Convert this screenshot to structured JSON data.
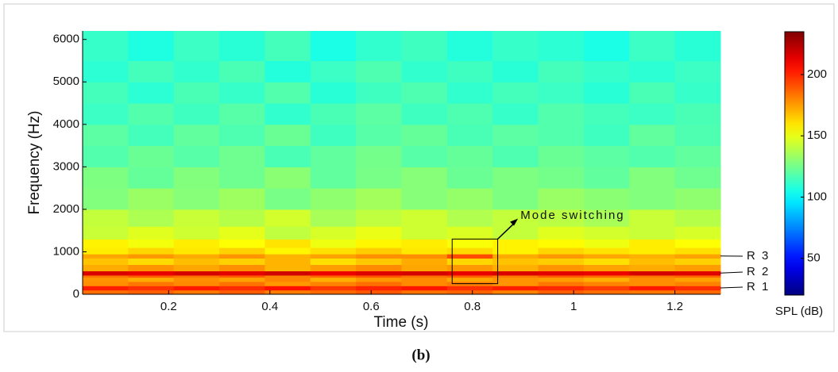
{
  "chart_data": {
    "type": "heatmap",
    "x_label": "Time (s)",
    "y_label": "Frequency (Hz)",
    "colorbar_label": "SPL (dB)",
    "caption": "(b)",
    "annotations": [
      "Mode switching",
      "R 1",
      "R 2",
      "R 3"
    ],
    "x": [
      0.03,
      0.12,
      0.21,
      0.3,
      0.39,
      0.48,
      0.57,
      0.66,
      0.75,
      0.84,
      0.93,
      1.02,
      1.11,
      1.2,
      1.29
    ],
    "y": [
      0,
      100,
      200,
      300,
      400,
      450,
      550,
      700,
      850,
      950,
      1100,
      1300,
      1600,
      2000,
      2500,
      3000,
      3500,
      4000,
      4500,
      5000,
      5500,
      6200
    ],
    "z": [
      [
        185,
        188,
        183,
        189,
        182,
        186,
        190,
        184,
        187,
        181,
        188,
        185,
        183,
        186
      ],
      [
        202,
        198,
        203,
        199,
        205,
        197,
        201,
        204,
        198,
        202,
        200,
        196,
        203,
        199
      ],
      [
        178,
        183,
        179,
        184,
        176,
        181,
        185,
        179,
        182,
        177,
        183,
        180,
        178,
        181
      ],
      [
        177,
        172,
        178,
        174,
        180,
        171,
        176,
        179,
        173,
        177,
        175,
        171,
        178,
        174
      ],
      [
        183,
        188,
        184,
        189,
        181,
        186,
        190,
        184,
        187,
        182,
        188,
        185,
        183,
        186
      ],
      [
        216,
        213,
        217,
        214,
        218,
        212,
        215,
        217,
        213,
        216,
        214,
        212,
        217,
        215
      ],
      [
        172,
        177,
        173,
        178,
        170,
        175,
        179,
        173,
        176,
        171,
        177,
        174,
        172,
        175
      ],
      [
        167,
        162,
        168,
        164,
        170,
        161,
        166,
        172,
        163,
        167,
        165,
        161,
        168,
        164
      ],
      [
        173,
        176,
        172,
        177,
        170,
        174,
        178,
        178,
        192,
        172,
        176,
        173,
        171,
        174
      ],
      [
        158,
        163,
        159,
        164,
        156,
        161,
        165,
        159,
        162,
        157,
        163,
        160,
        158,
        161
      ],
      [
        157,
        152,
        158,
        154,
        160,
        151,
        156,
        158,
        153,
        157,
        155,
        151,
        158,
        154
      ],
      [
        143,
        148,
        144,
        149,
        141,
        146,
        150,
        144,
        147,
        142,
        148,
        145,
        143,
        146
      ],
      [
        142,
        137,
        143,
        139,
        145,
        136,
        141,
        144,
        138,
        142,
        140,
        136,
        143,
        139
      ],
      [
        128,
        133,
        129,
        134,
        126,
        131,
        135,
        129,
        132,
        127,
        133,
        130,
        128,
        131
      ],
      [
        127,
        122,
        128,
        124,
        130,
        121,
        126,
        129,
        123,
        127,
        125,
        121,
        128,
        124
      ],
      [
        118,
        123,
        119,
        124,
        116,
        121,
        125,
        119,
        122,
        117,
        123,
        120,
        118,
        121
      ],
      [
        120,
        115,
        121,
        117,
        123,
        114,
        119,
        122,
        116,
        120,
        118,
        114,
        121,
        117
      ],
      [
        113,
        118,
        114,
        119,
        111,
        116,
        120,
        114,
        117,
        112,
        118,
        115,
        113,
        116
      ],
      [
        115,
        110,
        116,
        112,
        118,
        109,
        114,
        117,
        111,
        115,
        113,
        109,
        116,
        112
      ],
      [
        110,
        115,
        111,
        116,
        108,
        113,
        117,
        111,
        114,
        109,
        115,
        112,
        110,
        113
      ],
      [
        112,
        107,
        113,
        109,
        115,
        106,
        111,
        114,
        108,
        112,
        110,
        106,
        113,
        109
      ]
    ],
    "xlim": [
      0.03,
      1.29
    ],
    "ylim": [
      0,
      6200
    ],
    "xticks": [
      0.2,
      0.4,
      0.6,
      0.8,
      1,
      1.2
    ],
    "yticks": [
      0,
      1000,
      2000,
      3000,
      4000,
      5000,
      6000
    ],
    "colormap": "jet",
    "clim": [
      20,
      235
    ],
    "cticks": [
      50,
      100,
      150,
      200
    ]
  }
}
